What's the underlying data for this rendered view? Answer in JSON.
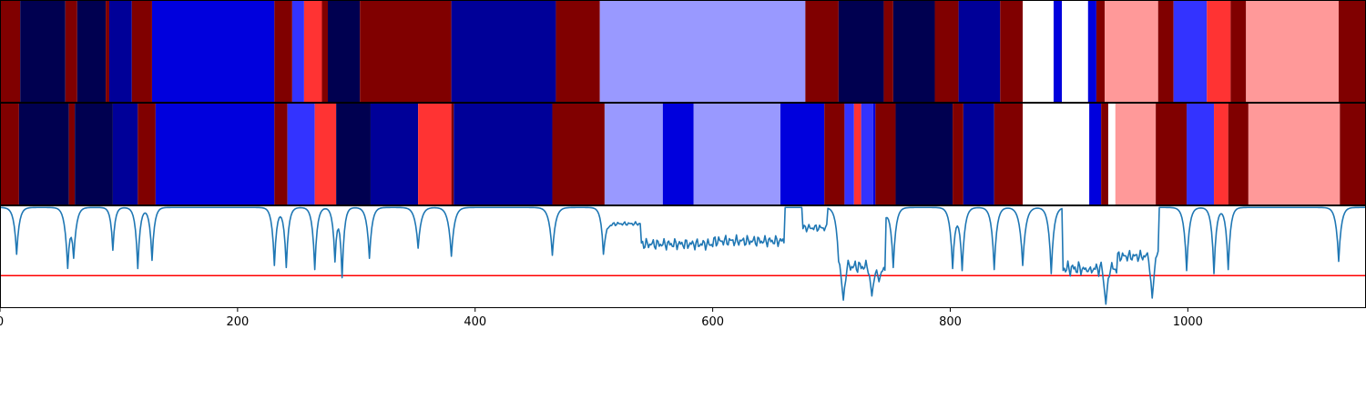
{
  "chart_data": {
    "type": "heatmap",
    "title": "",
    "xlabel": "",
    "ylabel": "",
    "xlim": [
      0,
      1150
    ],
    "x_ticks": [
      {
        "value": 0,
        "label": "0"
      },
      {
        "value": 200,
        "label": "200"
      },
      {
        "value": 400,
        "label": "400"
      },
      {
        "value": 600,
        "label": "600"
      },
      {
        "value": 800,
        "label": "800"
      },
      {
        "value": 1000,
        "label": "1000"
      }
    ],
    "tracks": [
      {
        "segments": [
          {
            "start": 0,
            "end": 17,
            "color": "#800000"
          },
          {
            "start": 17,
            "end": 55,
            "color": "#000050"
          },
          {
            "start": 55,
            "end": 65,
            "color": "#800000"
          },
          {
            "start": 65,
            "end": 89,
            "color": "#000050"
          },
          {
            "start": 89,
            "end": 92,
            "color": "#800000"
          },
          {
            "start": 92,
            "end": 111,
            "color": "#000098"
          },
          {
            "start": 111,
            "end": 128,
            "color": "#800000"
          },
          {
            "start": 128,
            "end": 231,
            "color": "#0000dd"
          },
          {
            "start": 231,
            "end": 246,
            "color": "#800000"
          },
          {
            "start": 246,
            "end": 256,
            "color": "#3333ff"
          },
          {
            "start": 256,
            "end": 271,
            "color": "#ff3333"
          },
          {
            "start": 271,
            "end": 276,
            "color": "#800000"
          },
          {
            "start": 276,
            "end": 303,
            "color": "#000050"
          },
          {
            "start": 303,
            "end": 380,
            "color": "#800000"
          },
          {
            "start": 380,
            "end": 468,
            "color": "#000098"
          },
          {
            "start": 468,
            "end": 505,
            "color": "#800000"
          },
          {
            "start": 505,
            "end": 678,
            "color": "#9999ff"
          },
          {
            "start": 678,
            "end": 706,
            "color": "#800000"
          },
          {
            "start": 706,
            "end": 744,
            "color": "#000050"
          },
          {
            "start": 744,
            "end": 752,
            "color": "#800000"
          },
          {
            "start": 752,
            "end": 787,
            "color": "#000050"
          },
          {
            "start": 787,
            "end": 807,
            "color": "#800000"
          },
          {
            "start": 807,
            "end": 842,
            "color": "#000098"
          },
          {
            "start": 842,
            "end": 861,
            "color": "#800000"
          },
          {
            "start": 861,
            "end": 887,
            "color": "#ffffff"
          },
          {
            "start": 887,
            "end": 894,
            "color": "#0000dd"
          },
          {
            "start": 894,
            "end": 916,
            "color": "#ffffff"
          },
          {
            "start": 916,
            "end": 923,
            "color": "#0000dd"
          },
          {
            "start": 923,
            "end": 930,
            "color": "#800000"
          },
          {
            "start": 930,
            "end": 975,
            "color": "#ff9999"
          },
          {
            "start": 975,
            "end": 988,
            "color": "#800000"
          },
          {
            "start": 988,
            "end": 1016,
            "color": "#3333ff"
          },
          {
            "start": 1016,
            "end": 1036,
            "color": "#ff3333"
          },
          {
            "start": 1036,
            "end": 1049,
            "color": "#800000"
          },
          {
            "start": 1049,
            "end": 1127,
            "color": "#ff9999"
          },
          {
            "start": 1127,
            "end": 1150,
            "color": "#800000"
          }
        ]
      },
      {
        "segments": [
          {
            "start": 0,
            "end": 16,
            "color": "#800000"
          },
          {
            "start": 16,
            "end": 58,
            "color": "#000050"
          },
          {
            "start": 58,
            "end": 63,
            "color": "#800000"
          },
          {
            "start": 63,
            "end": 95,
            "color": "#000050"
          },
          {
            "start": 95,
            "end": 116,
            "color": "#000098"
          },
          {
            "start": 116,
            "end": 131,
            "color": "#800000"
          },
          {
            "start": 131,
            "end": 231,
            "color": "#0000dd"
          },
          {
            "start": 231,
            "end": 242,
            "color": "#800000"
          },
          {
            "start": 242,
            "end": 265,
            "color": "#3333ff"
          },
          {
            "start": 265,
            "end": 283,
            "color": "#ff3333"
          },
          {
            "start": 283,
            "end": 312,
            "color": "#000050"
          },
          {
            "start": 312,
            "end": 352,
            "color": "#000098"
          },
          {
            "start": 352,
            "end": 380,
            "color": "#ff3333"
          },
          {
            "start": 380,
            "end": 382,
            "color": "#800000"
          },
          {
            "start": 382,
            "end": 465,
            "color": "#000098"
          },
          {
            "start": 465,
            "end": 509,
            "color": "#800000"
          },
          {
            "start": 509,
            "end": 558,
            "color": "#9999ff"
          },
          {
            "start": 558,
            "end": 584,
            "color": "#0000dd"
          },
          {
            "start": 584,
            "end": 657,
            "color": "#9999ff"
          },
          {
            "start": 657,
            "end": 694,
            "color": "#0000dd"
          },
          {
            "start": 694,
            "end": 711,
            "color": "#800000"
          },
          {
            "start": 711,
            "end": 719,
            "color": "#3333ff"
          },
          {
            "start": 719,
            "end": 725,
            "color": "#ff3333"
          },
          {
            "start": 725,
            "end": 735,
            "color": "#3333ff"
          },
          {
            "start": 735,
            "end": 737,
            "color": "#0000dd"
          },
          {
            "start": 737,
            "end": 754,
            "color": "#800000"
          },
          {
            "start": 754,
            "end": 802,
            "color": "#000050"
          },
          {
            "start": 802,
            "end": 811,
            "color": "#800000"
          },
          {
            "start": 811,
            "end": 837,
            "color": "#000098"
          },
          {
            "start": 837,
            "end": 861,
            "color": "#800000"
          },
          {
            "start": 861,
            "end": 917,
            "color": "#ffffff"
          },
          {
            "start": 917,
            "end": 927,
            "color": "#0000dd"
          },
          {
            "start": 927,
            "end": 933,
            "color": "#800000"
          },
          {
            "start": 933,
            "end": 939,
            "color": "#ffffff"
          },
          {
            "start": 939,
            "end": 973,
            "color": "#ff9999"
          },
          {
            "start": 973,
            "end": 999,
            "color": "#800000"
          },
          {
            "start": 999,
            "end": 1022,
            "color": "#3333ff"
          },
          {
            "start": 1022,
            "end": 1034,
            "color": "#ff3333"
          },
          {
            "start": 1034,
            "end": 1051,
            "color": "#800000"
          },
          {
            "start": 1051,
            "end": 1128,
            "color": "#ff9999"
          },
          {
            "start": 1128,
            "end": 1150,
            "color": "#800000"
          }
        ]
      }
    ],
    "line_panel": {
      "ylim": [
        0,
        1
      ],
      "line_color": "#1f77b4",
      "threshold": {
        "y": 0.31,
        "color": "#ff0000"
      },
      "baseline": 0.98,
      "dips": [
        {
          "x": 14,
          "depth": 0.52,
          "width": 2.2
        },
        {
          "x": 57,
          "depth": 0.37,
          "width": 2.2
        },
        {
          "x": 62,
          "depth": 0.48,
          "width": 2.2
        },
        {
          "x": 95,
          "depth": 0.56,
          "width": 1.8
        },
        {
          "x": 116,
          "depth": 0.38,
          "width": 2.0
        },
        {
          "x": 128,
          "depth": 0.46,
          "width": 2.0
        },
        {
          "x": 231,
          "depth": 0.41,
          "width": 2.0
        },
        {
          "x": 241,
          "depth": 0.39,
          "width": 2.0
        },
        {
          "x": 265,
          "depth": 0.37,
          "width": 2.0
        },
        {
          "x": 282,
          "depth": 0.45,
          "width": 1.8
        },
        {
          "x": 288,
          "depth": 0.29,
          "width": 1.8
        },
        {
          "x": 311,
          "depth": 0.48,
          "width": 2.2
        },
        {
          "x": 352,
          "depth": 0.58,
          "width": 2.5
        },
        {
          "x": 380,
          "depth": 0.5,
          "width": 2.5
        },
        {
          "x": 465,
          "depth": 0.51,
          "width": 2.5
        },
        {
          "x": 508,
          "depth": 0.52,
          "width": 2.0
        },
        {
          "x": 706,
          "depth": 0.45,
          "width": 2.2
        },
        {
          "x": 740,
          "depth": 0.25,
          "width": 2.5
        },
        {
          "x": 752,
          "depth": 0.39,
          "width": 2.2
        },
        {
          "x": 802,
          "depth": 0.38,
          "width": 2.2
        },
        {
          "x": 810,
          "depth": 0.36,
          "width": 2.2
        },
        {
          "x": 837,
          "depth": 0.37,
          "width": 2.2
        },
        {
          "x": 861,
          "depth": 0.41,
          "width": 2.5
        },
        {
          "x": 885,
          "depth": 0.33,
          "width": 2.2
        },
        {
          "x": 916,
          "depth": 0.35,
          "width": 2.5
        },
        {
          "x": 999,
          "depth": 0.36,
          "width": 2.2
        },
        {
          "x": 1022,
          "depth": 0.33,
          "width": 2.0
        },
        {
          "x": 1034,
          "depth": 0.37,
          "width": 2.0
        },
        {
          "x": 1127,
          "depth": 0.45,
          "width": 2.2
        }
      ],
      "regions": [
        {
          "start": 509,
          "end": 540,
          "level": 0.82,
          "ripple": 0.02
        },
        {
          "start": 540,
          "end": 600,
          "level": 0.62,
          "ripple": 0.06
        },
        {
          "start": 600,
          "end": 660,
          "level": 0.65,
          "ripple": 0.06
        },
        {
          "start": 676,
          "end": 696,
          "level": 0.78,
          "ripple": 0.04
        },
        {
          "start": 706,
          "end": 745,
          "level": 0.4,
          "ripple": 0.07
        },
        {
          "start": 895,
          "end": 940,
          "level": 0.38,
          "ripple": 0.08
        },
        {
          "start": 940,
          "end": 975,
          "level": 0.5,
          "ripple": 0.06
        }
      ],
      "sharp_dips": [
        {
          "x": 710,
          "y": 0.07
        },
        {
          "x": 734,
          "y": 0.11
        },
        {
          "x": 931,
          "y": 0.03
        },
        {
          "x": 970,
          "y": 0.09
        }
      ]
    }
  }
}
